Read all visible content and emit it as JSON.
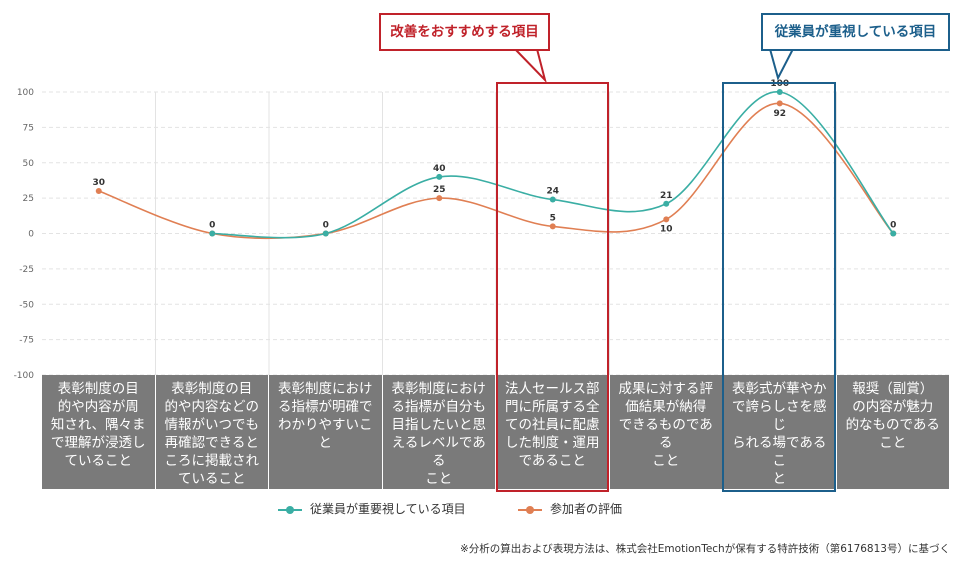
{
  "chart_data": {
    "type": "line",
    "title": "",
    "xlabel": "",
    "ylabel": "",
    "ylim": [
      -100,
      100
    ],
    "yticks": [
      "100",
      "75",
      "50",
      "25",
      "0",
      "-25",
      "-50",
      "-75",
      "-100"
    ],
    "grid": true,
    "legend_position": "bottom",
    "categories": [
      "表彰制度の目的や内容が周知され、隅々まで理解が浸透していること",
      "表彰制度の目的や内容などの情報がいつでも再確認できるところに掲載されていること",
      "表彰制度における指標が明確でわかりやすいこと",
      "表彰制度における指標が自分も目指したいと思えるレベルであること",
      "法人セールス部門に所属する全ての社員に配慮した制度・運用であること",
      "成果に対する評価結果が納得できるものであること",
      "表彰式が華やかで誇らしさを感じられる場であること",
      "報奨（副賞）の内容が魅力的なものであること"
    ],
    "category_lines": [
      [
        "表彰制度の目",
        "的や内容が周",
        "知され、隅々ま",
        "で理解が浸透し",
        "ていること"
      ],
      [
        "表彰制度の目",
        "的や内容などの",
        "情報がいつでも",
        "再確認できると",
        "ころに掲載され",
        "ていること"
      ],
      [
        "表彰制度におけ",
        "る指標が明確で",
        "わかりやすいこと"
      ],
      [
        "表彰制度におけ",
        "る指標が自分も",
        "目指したいと思",
        "えるレベルである",
        "こと"
      ],
      [
        "法人セールス部",
        "門に所属する全",
        "ての社員に配慮",
        "した制度・運用",
        "であること"
      ],
      [
        "成果に対する評",
        "価結果が納得",
        "できるものである",
        "こと"
      ],
      [
        "表彰式が華やか",
        "で誇らしさを感じ",
        "られる場であるこ",
        "と"
      ],
      [
        "報奨（副賞）",
        "の内容が魅力",
        "的なものである",
        "こと"
      ]
    ],
    "series": [
      {
        "name": "従業員が重要視している項目",
        "color": "#3aaea4",
        "values": [
          null,
          0,
          0,
          40,
          24,
          21,
          100,
          0
        ]
      },
      {
        "name": "参加者の評価",
        "color": "#e07f53",
        "values": [
          30,
          0,
          0,
          25,
          5,
          10,
          92,
          0
        ]
      }
    ],
    "annotations": [
      {
        "text": "改善をおすすめする項目",
        "color": "#c0222a",
        "category_index": 4
      },
      {
        "text": "従業員が重視している項目",
        "color": "#1c5f8b",
        "category_index": 6
      }
    ],
    "footnote": "※分析の算出および表現方法は、株式会社EmotionTechが保有する特許技術（第6176813号）に基づく"
  }
}
